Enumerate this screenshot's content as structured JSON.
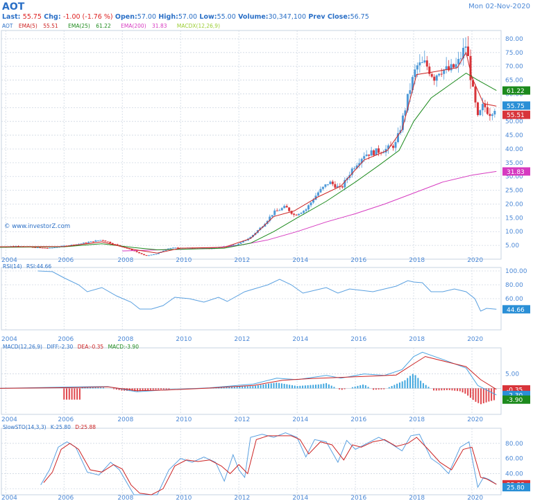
{
  "header": {
    "symbol": "AOT",
    "date": "Mon 02-Nov-2020",
    "last_label": "Last:",
    "last": "55.75",
    "chg_label": "Chg:",
    "chg": "-1.00 (-1.76 %)",
    "open_label": "Open:",
    "open": "57.00",
    "high_label": "High:",
    "high": "57.00",
    "low_label": "Low:",
    "low": "55.00",
    "volume_label": "Volume:",
    "volume": "30,347,100",
    "prev_label": "Prev Close:",
    "prev": "56.75"
  },
  "legend_main": {
    "sym": "AOT",
    "ema5": "EMA(5)",
    "ema5_val": "55.51",
    "ema25": "EMA(25)",
    "ema25_val": "61.22",
    "ema200": "EMA(200)",
    "ema200_val": "31.83",
    "macdx": "MACDX(12,26,9)"
  },
  "watermark": "© www.investorZ.com",
  "legend_rsi": {
    "label": "RSI(14)",
    "val": "RSI:44.66"
  },
  "legend_macd": {
    "label": "MACD(12,26,9)",
    "diff": "DIFF:-2.30",
    "dea": "DEA:-0.35",
    "macd": "MACD:-3.90"
  },
  "legend_sto": {
    "label": "SlowSTO(14,3,3)",
    "k": "K:25.80",
    "d": "D:25.88"
  },
  "colors": {
    "grid": "#cfd8e3",
    "axis_text": "#4b88d6",
    "up": "#4f9ad8",
    "down": "#d8343a",
    "ema5": "#cc2222",
    "ema25": "#1c8a1c",
    "ema200": "#d63ac0",
    "price_tag": "#2a8fd6",
    "rsi": "#5aa0e0",
    "diff": "#4aa3e0",
    "dea": "#cc2222"
  },
  "chart_data": [
    {
      "type": "candlestick",
      "title": "AOT",
      "x": [
        "2004",
        "2006",
        "2008",
        "2010",
        "2012",
        "2014",
        "2016",
        "2018",
        "2020"
      ],
      "ylim": [
        0,
        83
      ],
      "ticks": [
        5,
        10,
        15,
        20,
        25,
        30,
        35,
        40,
        45,
        50,
        55,
        60,
        65,
        70,
        75,
        80
      ],
      "tick_labels": [
        "5.00",
        "10.00",
        "15.00",
        "20.00",
        "25.00",
        "30.00",
        "35.00",
        "40.00",
        "45.00",
        "50.00",
        "55.00",
        "60.00",
        "65.00",
        "70.00",
        "75.00",
        "80.00"
      ],
      "close_series": [
        [
          2003.8,
          4.5
        ],
        [
          2004.5,
          4.8
        ],
        [
          2005.0,
          4.2
        ],
        [
          2005.5,
          4.0
        ],
        [
          2006.0,
          4.8
        ],
        [
          2006.5,
          5.5
        ],
        [
          2007.0,
          6.5
        ],
        [
          2007.3,
          7.0
        ],
        [
          2007.7,
          5.5
        ],
        [
          2008.0,
          4.5
        ],
        [
          2008.4,
          3.0
        ],
        [
          2008.8,
          1.2
        ],
        [
          2009.2,
          2.0
        ],
        [
          2009.6,
          4.0
        ],
        [
          2010.0,
          4.2
        ],
        [
          2010.5,
          4.0
        ],
        [
          2011.0,
          3.8
        ],
        [
          2011.5,
          4.5
        ],
        [
          2012.0,
          5.5
        ],
        [
          2012.4,
          8.0
        ],
        [
          2012.8,
          12.0
        ],
        [
          2013.2,
          17.0
        ],
        [
          2013.6,
          19.0
        ],
        [
          2013.9,
          16.0
        ],
        [
          2014.3,
          18.0
        ],
        [
          2014.7,
          24.0
        ],
        [
          2015.1,
          28.0
        ],
        [
          2015.5,
          25.5
        ],
        [
          2015.9,
          33.0
        ],
        [
          2016.3,
          38.0
        ],
        [
          2016.7,
          39.0
        ],
        [
          2017.1,
          40.0
        ],
        [
          2017.4,
          42.0
        ],
        [
          2017.6,
          50.0
        ],
        [
          2017.9,
          63.0
        ],
        [
          2018.1,
          70.0
        ],
        [
          2018.4,
          71.0
        ],
        [
          2018.7,
          66.0
        ],
        [
          2018.9,
          69.0
        ],
        [
          2019.2,
          68.5
        ],
        [
          2019.5,
          70.5
        ],
        [
          2019.8,
          78.0
        ],
        [
          2020.0,
          63.0
        ],
        [
          2020.2,
          51.0
        ],
        [
          2020.4,
          56.0
        ],
        [
          2020.6,
          53.0
        ],
        [
          2020.84,
          55.75
        ]
      ],
      "ema5_series": [
        [
          2003.8,
          4.5
        ],
        [
          2006.0,
          4.6
        ],
        [
          2007.3,
          6.3
        ],
        [
          2008.4,
          3.5
        ],
        [
          2009.2,
          2.2
        ],
        [
          2010.0,
          4.0
        ],
        [
          2011.5,
          4.3
        ],
        [
          2012.4,
          7.5
        ],
        [
          2013.2,
          15.5
        ],
        [
          2013.9,
          17.5
        ],
        [
          2014.7,
          22.5
        ],
        [
          2015.5,
          26.5
        ],
        [
          2016.3,
          36.0
        ],
        [
          2017.1,
          39.5
        ],
        [
          2017.6,
          47.0
        ],
        [
          2018.1,
          67.0
        ],
        [
          2018.7,
          68.0
        ],
        [
          2019.5,
          69.5
        ],
        [
          2019.8,
          75.0
        ],
        [
          2020.0,
          66.0
        ],
        [
          2020.4,
          56.5
        ],
        [
          2020.84,
          55.51
        ]
      ],
      "ema25_series": [
        [
          2003.8,
          4.3
        ],
        [
          2006.0,
          4.5
        ],
        [
          2007.3,
          5.6
        ],
        [
          2008.4,
          4.2
        ],
        [
          2009.2,
          3.4
        ],
        [
          2010.0,
          3.6
        ],
        [
          2011.5,
          4.0
        ],
        [
          2012.4,
          5.8
        ],
        [
          2013.2,
          10.0
        ],
        [
          2014.0,
          15.0
        ],
        [
          2015.0,
          21.0
        ],
        [
          2016.0,
          28.0
        ],
        [
          2016.8,
          34.0
        ],
        [
          2017.5,
          39.5
        ],
        [
          2018.0,
          50.0
        ],
        [
          2018.6,
          58.5
        ],
        [
          2019.2,
          63.0
        ],
        [
          2019.8,
          67.5
        ],
        [
          2020.2,
          65.0
        ],
        [
          2020.84,
          61.22
        ]
      ],
      "ema200_series": [
        [
          2008.0,
          3.0
        ],
        [
          2009.0,
          3.3
        ],
        [
          2010.0,
          3.6
        ],
        [
          2011.0,
          4.0
        ],
        [
          2012.0,
          5.0
        ],
        [
          2013.0,
          7.0
        ],
        [
          2014.0,
          10.0
        ],
        [
          2015.0,
          13.5
        ],
        [
          2016.0,
          16.5
        ],
        [
          2017.0,
          20.0
        ],
        [
          2018.0,
          24.0
        ],
        [
          2019.0,
          28.0
        ],
        [
          2020.0,
          30.5
        ],
        [
          2020.84,
          31.83
        ]
      ],
      "last_values": {
        "ema25": "61.22",
        "last": "55.75",
        "ema5": "55.51",
        "ema200": "31.83"
      }
    },
    {
      "type": "line",
      "title": "RSI(14)",
      "ylim": [
        15,
        105
      ],
      "ticks": [
        60,
        80,
        100
      ],
      "tick_labels": [
        "60.00",
        "80.00",
        "100.00"
      ],
      "x_labels": [
        "2004",
        "2006",
        "2008",
        "2010",
        "2012",
        "2014",
        "2016",
        "2018",
        "2020"
      ],
      "series": [
        [
          2005.1,
          100
        ],
        [
          2005.6,
          99
        ],
        [
          2006.0,
          90
        ],
        [
          2006.5,
          80
        ],
        [
          2006.8,
          70
        ],
        [
          2007.3,
          76
        ],
        [
          2007.8,
          64
        ],
        [
          2008.3,
          55
        ],
        [
          2008.6,
          45
        ],
        [
          2009.0,
          45
        ],
        [
          2009.4,
          50
        ],
        [
          2009.8,
          62
        ],
        [
          2010.3,
          60
        ],
        [
          2010.8,
          55
        ],
        [
          2011.3,
          62
        ],
        [
          2011.6,
          56
        ],
        [
          2012.2,
          70
        ],
        [
          2012.6,
          75
        ],
        [
          2013.0,
          80
        ],
        [
          2013.4,
          88
        ],
        [
          2013.8,
          80
        ],
        [
          2014.2,
          68
        ],
        [
          2014.6,
          72
        ],
        [
          2015.0,
          76
        ],
        [
          2015.4,
          68
        ],
        [
          2015.8,
          74
        ],
        [
          2016.2,
          72
        ],
        [
          2016.6,
          70
        ],
        [
          2017.0,
          74
        ],
        [
          2017.4,
          78
        ],
        [
          2017.8,
          86
        ],
        [
          2018.0,
          84
        ],
        [
          2018.3,
          83
        ],
        [
          2018.6,
          70
        ],
        [
          2019.0,
          70
        ],
        [
          2019.4,
          74
        ],
        [
          2019.8,
          70
        ],
        [
          2020.1,
          60
        ],
        [
          2020.3,
          42
        ],
        [
          2020.5,
          46
        ],
        [
          2020.84,
          44.66
        ]
      ],
      "last_value": "44.66"
    },
    {
      "type": "bar+line",
      "title": "MACD(12,26,9)",
      "ylim": [
        -9,
        14
      ],
      "ticks": [
        5
      ],
      "tick_labels": [
        "5.00"
      ],
      "x_labels": [
        "2004",
        "2006",
        "2008",
        "2010",
        "2012",
        "2014",
        "2016",
        "2018",
        "2020"
      ],
      "diff_series": [
        [
          2003.8,
          0
        ],
        [
          2006.5,
          0.5
        ],
        [
          2007.5,
          0.6
        ],
        [
          2008.5,
          -1.2
        ],
        [
          2009.5,
          -0.5
        ],
        [
          2011.0,
          0.2
        ],
        [
          2012.5,
          1.5
        ],
        [
          2013.3,
          3.5
        ],
        [
          2014.0,
          3.0
        ],
        [
          2015.0,
          4.5
        ],
        [
          2015.5,
          3.5
        ],
        [
          2016.3,
          5.0
        ],
        [
          2017.0,
          4.5
        ],
        [
          2017.6,
          6.5
        ],
        [
          2018.0,
          11.0
        ],
        [
          2018.3,
          12.5
        ],
        [
          2019.0,
          10.0
        ],
        [
          2019.8,
          7.0
        ],
        [
          2020.2,
          1.0
        ],
        [
          2020.84,
          -2.3
        ]
      ],
      "dea_series": [
        [
          2003.8,
          0
        ],
        [
          2006.5,
          0.3
        ],
        [
          2007.5,
          0.5
        ],
        [
          2008.5,
          -0.8
        ],
        [
          2009.5,
          -0.6
        ],
        [
          2011.0,
          0.1
        ],
        [
          2012.5,
          1.0
        ],
        [
          2013.5,
          2.8
        ],
        [
          2014.5,
          3.4
        ],
        [
          2015.5,
          3.8
        ],
        [
          2016.5,
          4.2
        ],
        [
          2017.4,
          4.6
        ],
        [
          2018.0,
          8.5
        ],
        [
          2018.4,
          11.0
        ],
        [
          2019.2,
          9.0
        ],
        [
          2019.8,
          7.5
        ],
        [
          2020.3,
          3.0
        ],
        [
          2020.84,
          -0.35
        ]
      ],
      "histogram": [
        [
          2006.6,
          0.4
        ],
        [
          2007.4,
          0.3
        ],
        [
          2008.0,
          -0.8
        ],
        [
          2008.5,
          -1.0
        ],
        [
          2009.0,
          -0.5
        ],
        [
          2012.5,
          0.8
        ],
        [
          2013.0,
          1.6
        ],
        [
          2013.3,
          2.0
        ],
        [
          2014.0,
          0.8
        ],
        [
          2014.8,
          1.4
        ],
        [
          2015.0,
          1.8
        ],
        [
          2015.5,
          -0.6
        ],
        [
          2016.3,
          1.4
        ],
        [
          2016.6,
          -0.5
        ],
        [
          2017.0,
          -0.3
        ],
        [
          2017.7,
          2.8
        ],
        [
          2017.9,
          4.5
        ],
        [
          2018.0,
          5.2
        ],
        [
          2018.3,
          2.0
        ],
        [
          2018.7,
          -0.8
        ],
        [
          2019.2,
          -0.6
        ],
        [
          2019.6,
          -1.0
        ],
        [
          2019.8,
          -2.0
        ],
        [
          2020.1,
          -4.5
        ],
        [
          2020.3,
          -5.5
        ],
        [
          2020.6,
          -4.5
        ],
        [
          2020.84,
          -3.9
        ]
      ],
      "last_values": {
        "dea": "-0.35",
        "diff": "-2.30",
        "macd": "-3.90"
      }
    },
    {
      "type": "line",
      "title": "SlowSTO(14,3,3)",
      "ylim": [
        12,
        100
      ],
      "ticks": [
        20,
        40,
        60,
        80
      ],
      "tick_labels": [
        "20.00",
        "40.00",
        "60.00",
        "80.00"
      ],
      "x_labels": [
        "2004",
        "2006",
        "2008",
        "2010",
        "2012",
        "2014",
        "2016",
        "2018",
        "2020"
      ],
      "k_series": [
        [
          2005.2,
          25
        ],
        [
          2005.5,
          45
        ],
        [
          2005.8,
          75
        ],
        [
          2006.1,
          82
        ],
        [
          2006.4,
          75
        ],
        [
          2006.8,
          42
        ],
        [
          2007.2,
          38
        ],
        [
          2007.6,
          55
        ],
        [
          2007.9,
          45
        ],
        [
          2008.2,
          25
        ],
        [
          2008.4,
          12
        ],
        [
          2008.8,
          12
        ],
        [
          2009.2,
          12
        ],
        [
          2009.6,
          45
        ],
        [
          2010.0,
          60
        ],
        [
          2010.4,
          55
        ],
        [
          2010.8,
          62
        ],
        [
          2011.2,
          55
        ],
        [
          2011.5,
          30
        ],
        [
          2011.8,
          65
        ],
        [
          2012.0,
          45
        ],
        [
          2012.2,
          35
        ],
        [
          2012.4,
          88
        ],
        [
          2012.8,
          92
        ],
        [
          2013.2,
          88
        ],
        [
          2013.6,
          94
        ],
        [
          2014.0,
          88
        ],
        [
          2014.3,
          62
        ],
        [
          2014.6,
          85
        ],
        [
          2015.0,
          82
        ],
        [
          2015.4,
          55
        ],
        [
          2015.7,
          84
        ],
        [
          2016.0,
          72
        ],
        [
          2016.4,
          80
        ],
        [
          2016.8,
          88
        ],
        [
          2017.2,
          80
        ],
        [
          2017.6,
          70
        ],
        [
          2017.9,
          90
        ],
        [
          2018.2,
          92
        ],
        [
          2018.6,
          60
        ],
        [
          2018.9,
          52
        ],
        [
          2019.2,
          40
        ],
        [
          2019.6,
          75
        ],
        [
          2019.9,
          82
        ],
        [
          2020.2,
          22
        ],
        [
          2020.4,
          35
        ],
        [
          2020.6,
          32
        ],
        [
          2020.84,
          25.8
        ]
      ],
      "d_series": [
        [
          2005.3,
          28
        ],
        [
          2005.6,
          42
        ],
        [
          2005.9,
          72
        ],
        [
          2006.2,
          80
        ],
        [
          2006.5,
          72
        ],
        [
          2006.9,
          45
        ],
        [
          2007.3,
          42
        ],
        [
          2007.7,
          52
        ],
        [
          2008.0,
          46
        ],
        [
          2008.3,
          25
        ],
        [
          2008.6,
          14
        ],
        [
          2009.0,
          12
        ],
        [
          2009.4,
          20
        ],
        [
          2009.8,
          50
        ],
        [
          2010.2,
          58
        ],
        [
          2010.6,
          56
        ],
        [
          2011.0,
          58
        ],
        [
          2011.4,
          50
        ],
        [
          2011.7,
          40
        ],
        [
          2012.0,
          52
        ],
        [
          2012.3,
          40
        ],
        [
          2012.6,
          85
        ],
        [
          2013.0,
          90
        ],
        [
          2013.4,
          90
        ],
        [
          2013.8,
          90
        ],
        [
          2014.1,
          85
        ],
        [
          2014.4,
          66
        ],
        [
          2014.8,
          82
        ],
        [
          2015.2,
          78
        ],
        [
          2015.6,
          58
        ],
        [
          2015.9,
          78
        ],
        [
          2016.2,
          75
        ],
        [
          2016.6,
          82
        ],
        [
          2017.0,
          85
        ],
        [
          2017.4,
          76
        ],
        [
          2017.8,
          80
        ],
        [
          2018.1,
          88
        ],
        [
          2018.5,
          72
        ],
        [
          2018.9,
          55
        ],
        [
          2019.3,
          45
        ],
        [
          2019.7,
          72
        ],
        [
          2020.0,
          75
        ],
        [
          2020.3,
          35
        ],
        [
          2020.5,
          33
        ],
        [
          2020.84,
          25.88
        ]
      ],
      "last_values": {
        "d": "25.88",
        "k": "25.80"
      }
    }
  ]
}
